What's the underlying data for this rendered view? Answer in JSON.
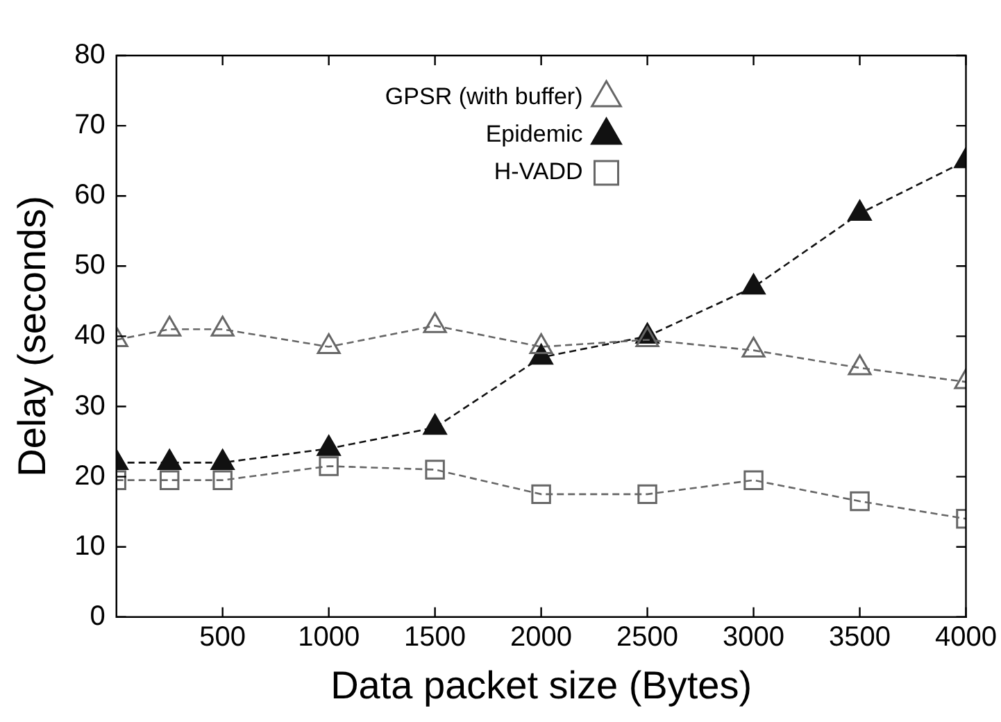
{
  "chart_data": {
    "type": "line",
    "xlabel": "Data packet size (Bytes)",
    "ylabel": "Delay (seconds)",
    "x": [
      0,
      250,
      500,
      1000,
      1500,
      2000,
      2500,
      3000,
      3500,
      4000
    ],
    "series": [
      {
        "name": "H-VADD",
        "color": "#666666",
        "marker": "square",
        "values": [
          19.5,
          19.5,
          19.5,
          21.5,
          21,
          17.5,
          17.5,
          19.5,
          16.5,
          14
        ]
      },
      {
        "name": "Epidemic",
        "color": "#111111",
        "marker": "triangle",
        "values": [
          22,
          22,
          22,
          24,
          27,
          37,
          40,
          47,
          57.5,
          65
        ]
      },
      {
        "name": "GPSR (with buffer)",
        "color": "#666666",
        "marker": "triangle-open",
        "values": [
          39.5,
          41,
          41,
          38.5,
          41.5,
          38.5,
          39.5,
          38,
          35.5,
          33.5
        ]
      }
    ],
    "xlim": [
      0,
      4000
    ],
    "xticks": [
      500,
      1000,
      1500,
      2000,
      2500,
      3000,
      3500,
      4000
    ],
    "ylim": [
      0,
      80
    ],
    "yticks": [
      0,
      10,
      20,
      30,
      40,
      50,
      60,
      70,
      80
    ],
    "grid": false,
    "legend": "top",
    "line_style": "dashed"
  }
}
